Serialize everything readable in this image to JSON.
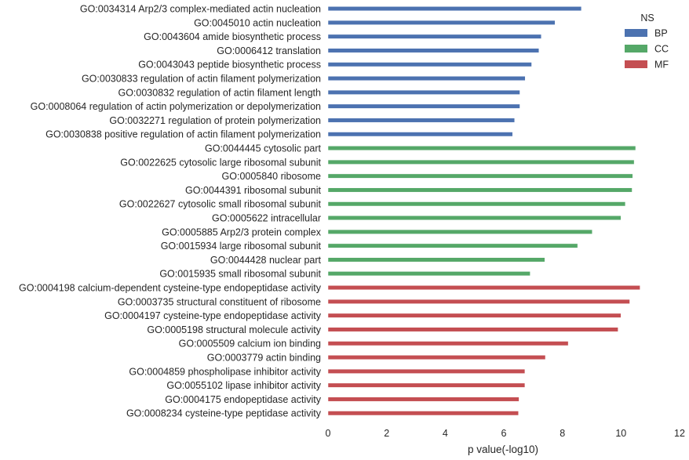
{
  "chart_data": {
    "type": "bar",
    "orientation": "horizontal",
    "xlabel": "p value(-log10)",
    "xlim": [
      0,
      12
    ],
    "xticks": [
      0,
      2,
      4,
      6,
      8,
      10,
      12
    ],
    "grid": false,
    "legend": {
      "title": "NS",
      "placement": "top-right",
      "entries": [
        {
          "name": "BP",
          "color": "#4c72b0"
        },
        {
          "name": "CC",
          "color": "#55a868"
        },
        {
          "name": "MF",
          "color": "#c44e52"
        }
      ]
    },
    "bars": [
      {
        "label": "GO:0034314 Arp2/3 complex-mediated actin nucleation",
        "value": 8.65,
        "ns": "BP"
      },
      {
        "label": "GO:0045010 actin nucleation",
        "value": 7.75,
        "ns": "BP"
      },
      {
        "label": "GO:0043604 amide biosynthetic process",
        "value": 7.28,
        "ns": "BP"
      },
      {
        "label": "GO:0006412 translation",
        "value": 7.2,
        "ns": "BP"
      },
      {
        "label": "GO:0043043 peptide biosynthetic process",
        "value": 6.95,
        "ns": "BP"
      },
      {
        "label": "GO:0030833 regulation of actin filament polymerization",
        "value": 6.73,
        "ns": "BP"
      },
      {
        "label": "GO:0030832 regulation of actin filament length",
        "value": 6.55,
        "ns": "BP"
      },
      {
        "label": "GO:0008064 regulation of actin polymerization or depolymerization",
        "value": 6.55,
        "ns": "BP"
      },
      {
        "label": "GO:0032271 regulation of protein polymerization",
        "value": 6.37,
        "ns": "BP"
      },
      {
        "label": "GO:0030838 positive regulation of actin filament polymerization",
        "value": 6.3,
        "ns": "BP"
      },
      {
        "label": "GO:0044445 cytosolic part",
        "value": 10.5,
        "ns": "CC"
      },
      {
        "label": "GO:0022625 cytosolic large ribosomal subunit",
        "value": 10.45,
        "ns": "CC"
      },
      {
        "label": "GO:0005840 ribosome",
        "value": 10.4,
        "ns": "CC"
      },
      {
        "label": "GO:0044391 ribosomal subunit",
        "value": 10.38,
        "ns": "CC"
      },
      {
        "label": "GO:0022627 cytosolic small ribosomal subunit",
        "value": 10.15,
        "ns": "CC"
      },
      {
        "label": "GO:0005622 intracellular",
        "value": 10.0,
        "ns": "CC"
      },
      {
        "label": "GO:0005885 Arp2/3 protein complex",
        "value": 9.02,
        "ns": "CC"
      },
      {
        "label": "GO:0015934 large ribosomal subunit",
        "value": 8.52,
        "ns": "CC"
      },
      {
        "label": "GO:0044428 nuclear part",
        "value": 7.4,
        "ns": "CC"
      },
      {
        "label": "GO:0015935 small ribosomal subunit",
        "value": 6.9,
        "ns": "CC"
      },
      {
        "label": "GO:0004198 calcium-dependent cysteine-type endopeptidase activity",
        "value": 10.65,
        "ns": "MF"
      },
      {
        "label": "GO:0003735 structural constituent of ribosome",
        "value": 10.3,
        "ns": "MF"
      },
      {
        "label": "GO:0004197 cysteine-type endopeptidase activity",
        "value": 10.0,
        "ns": "MF"
      },
      {
        "label": "GO:0005198 structural molecule activity",
        "value": 9.9,
        "ns": "MF"
      },
      {
        "label": "GO:0005509 calcium ion binding",
        "value": 8.2,
        "ns": "MF"
      },
      {
        "label": "GO:0003779 actin binding",
        "value": 7.42,
        "ns": "MF"
      },
      {
        "label": "GO:0004859 phospholipase inhibitor activity",
        "value": 6.72,
        "ns": "MF"
      },
      {
        "label": "GO:0055102 lipase inhibitor activity",
        "value": 6.72,
        "ns": "MF"
      },
      {
        "label": "GO:0004175 endopeptidase activity",
        "value": 6.52,
        "ns": "MF"
      },
      {
        "label": "GO:0008234 cysteine-type peptidase activity",
        "value": 6.5,
        "ns": "MF"
      }
    ]
  }
}
